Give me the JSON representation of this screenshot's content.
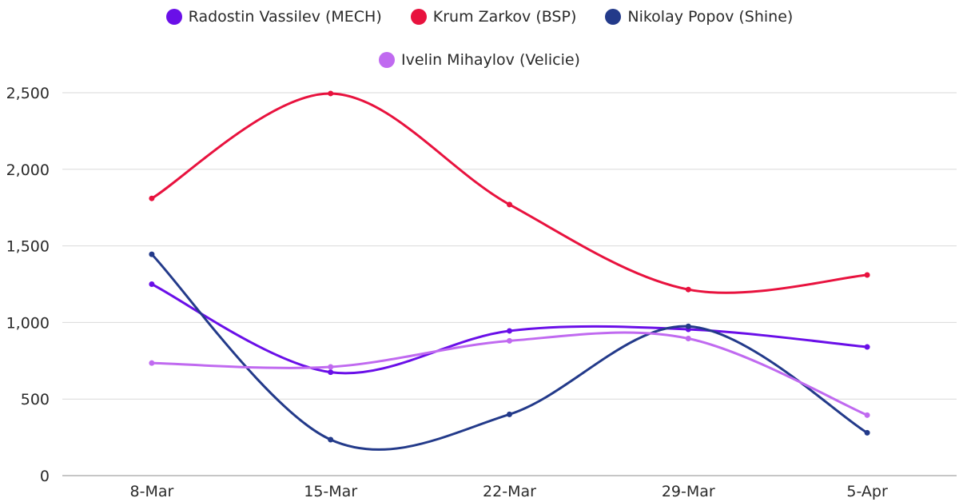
{
  "chart_data": {
    "type": "line",
    "categories": [
      "8-Mar",
      "15-Mar",
      "22-Mar",
      "29-Mar",
      "5-Apr"
    ],
    "ylim": [
      0,
      2500
    ],
    "yticks": [
      0,
      500,
      1000,
      1500,
      2000,
      2500
    ],
    "ytick_labels": [
      "0",
      "500",
      "1,000",
      "1,500",
      "2,000",
      "2,500"
    ],
    "grid": true,
    "legend_position": "top",
    "series": [
      {
        "name": "Radostin Vassilev (MECH)",
        "color": "#6a0fe8",
        "values": [
          1250,
          675,
          945,
          955,
          840
        ]
      },
      {
        "name": "Krum Zarkov (BSP)",
        "color": "#e8123e",
        "values": [
          1810,
          2495,
          1770,
          1215,
          1310
        ]
      },
      {
        "name": "Nikolay Popov (Shine)",
        "color": "#233a8a",
        "values": [
          1445,
          235,
          400,
          975,
          280
        ]
      },
      {
        "name": "Ivelin Mihaylov (Velicie)",
        "color": "#c06af0",
        "values": [
          735,
          710,
          880,
          895,
          395
        ]
      }
    ]
  }
}
